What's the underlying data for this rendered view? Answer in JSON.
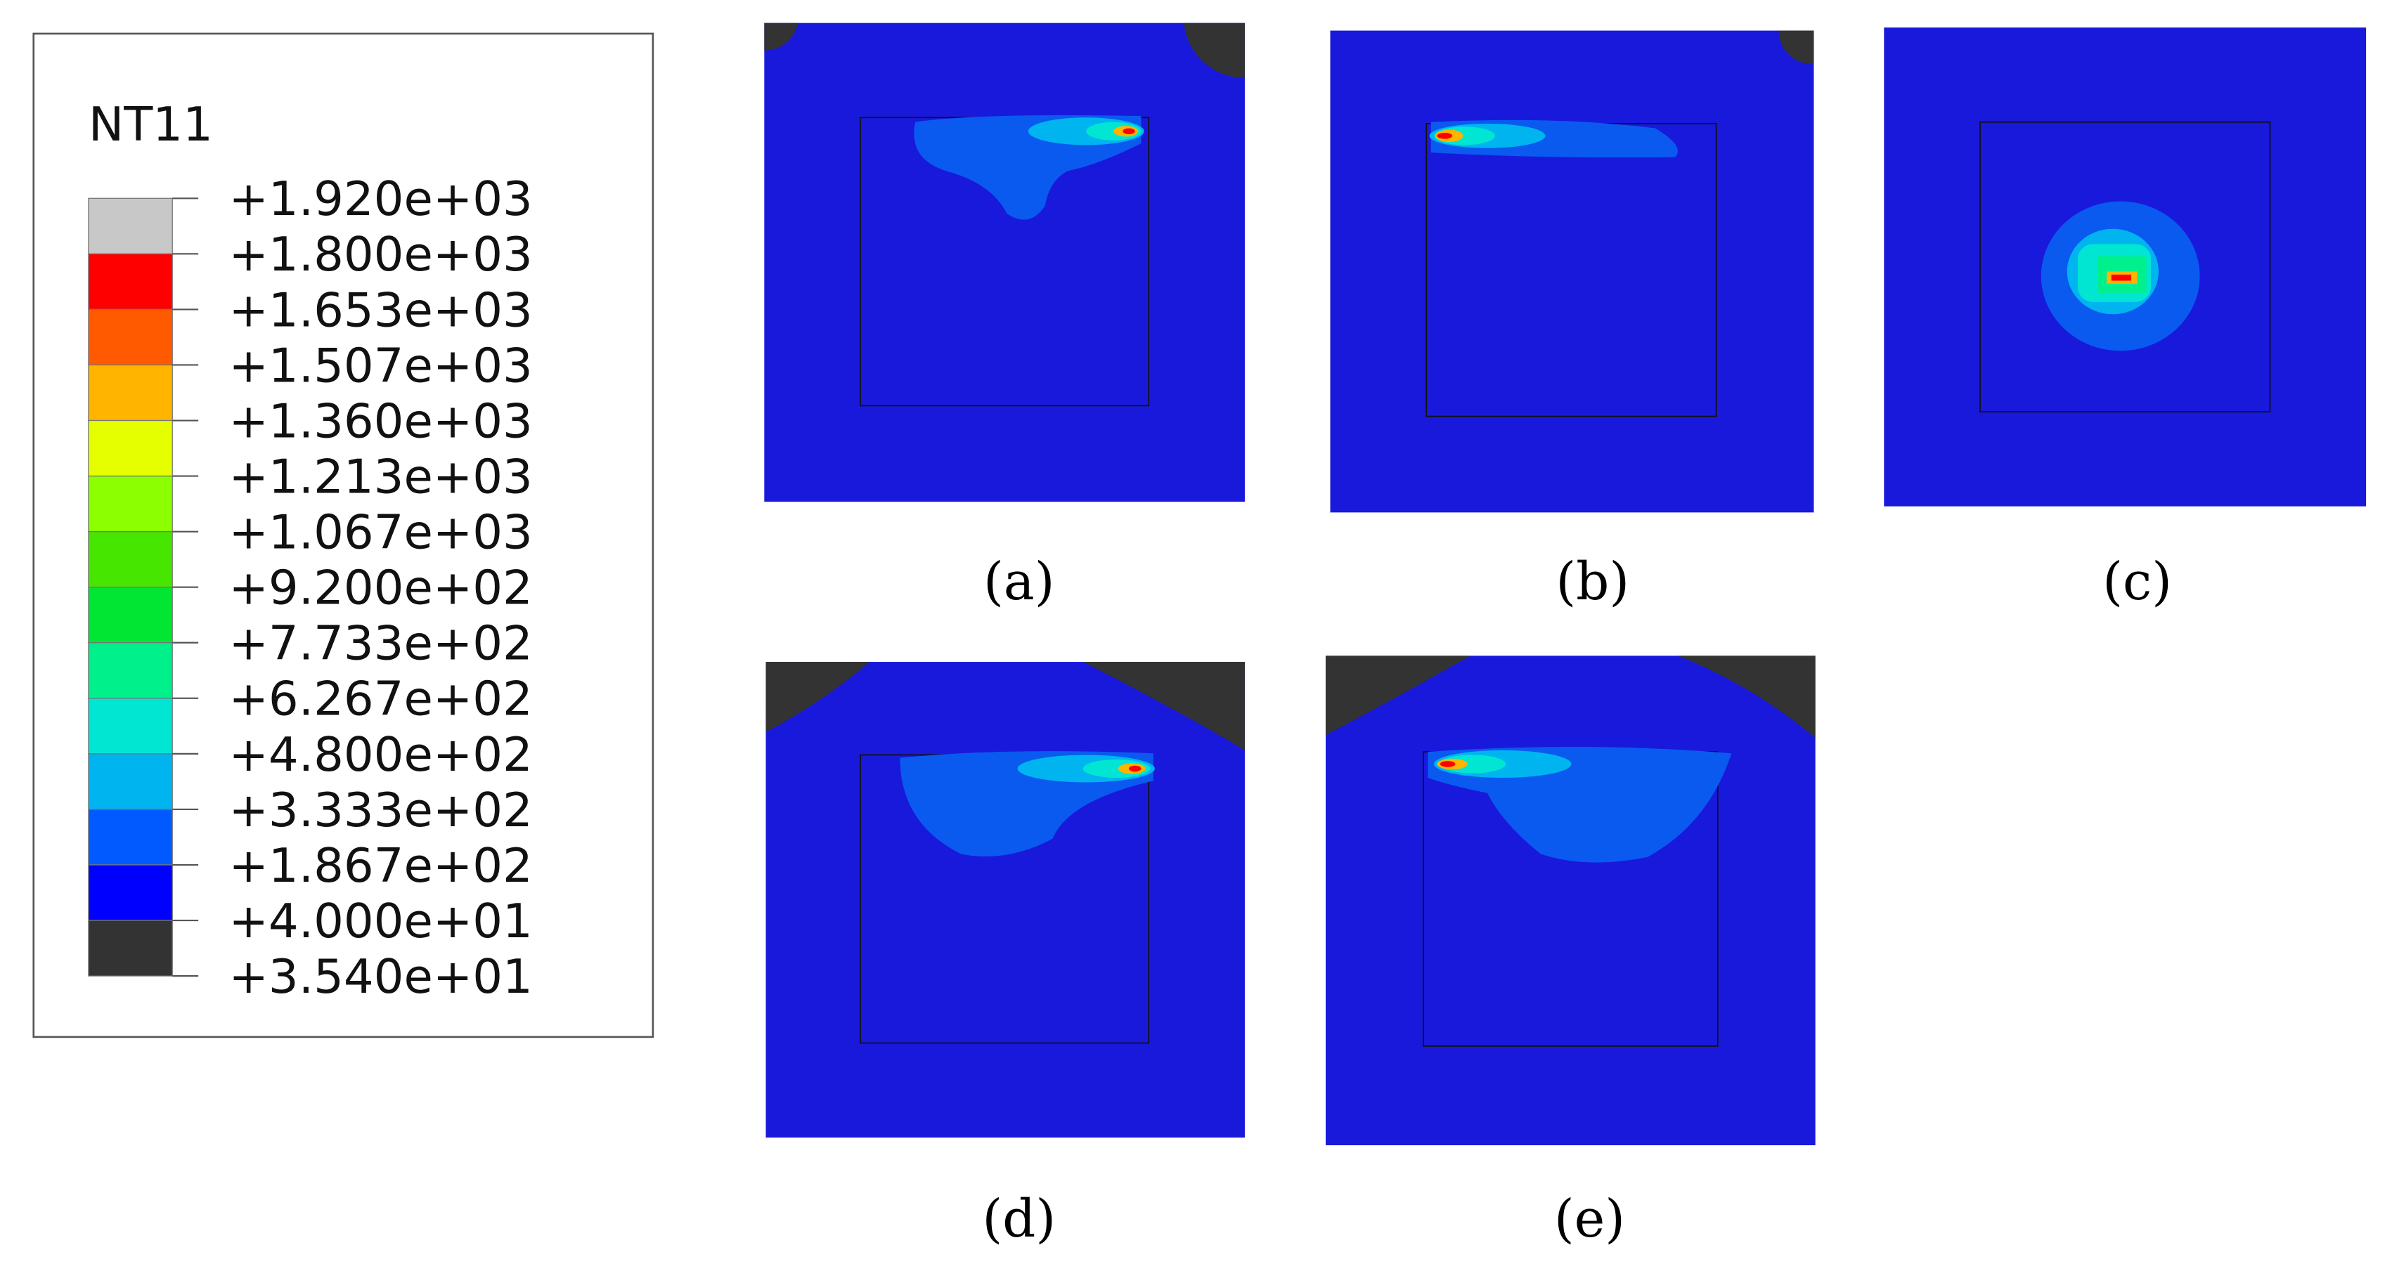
{
  "legend": {
    "title": "NT11",
    "levels": [
      "+1.920e+03",
      "+1.800e+03",
      "+1.653e+03",
      "+1.507e+03",
      "+1.360e+03",
      "+1.213e+03",
      "+1.067e+03",
      "+9.200e+02",
      "+7.733e+02",
      "+6.267e+02",
      "+4.800e+02",
      "+3.333e+02",
      "+1.867e+02",
      "+4.000e+01",
      "+3.540e+01"
    ],
    "colors": [
      "#c8c8c8",
      "#ff0000",
      "#ff5a00",
      "#ffb400",
      "#e6ff00",
      "#8cff00",
      "#46e600",
      "#00e632",
      "#00f08c",
      "#00e6d2",
      "#00b4f0",
      "#005aff",
      "#0000ff",
      "#333333"
    ]
  },
  "panels": [
    {
      "label": "(a)"
    },
    {
      "label": "(b)"
    },
    {
      "label": "(c)"
    },
    {
      "label": "(d)"
    },
    {
      "label": "(e)"
    }
  ]
}
